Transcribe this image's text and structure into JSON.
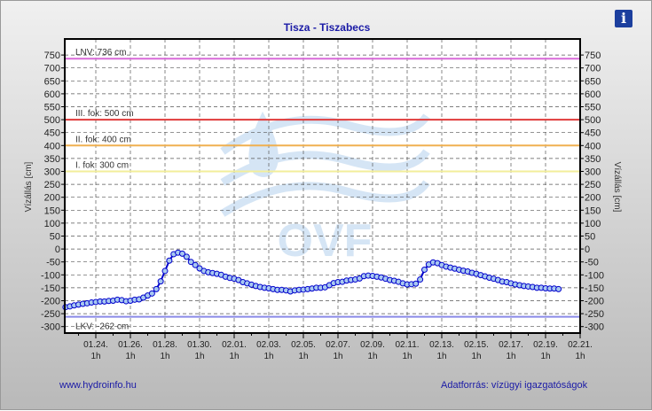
{
  "title": "Tisza - Tiszabecs",
  "info_icon": "info-icon",
  "footer": {
    "left": "www.hydroinfo.hu",
    "right": "Adatforrás: vízügyi igazgatóságok"
  },
  "watermark": "OVF",
  "chart_data": {
    "type": "line",
    "title": "Tisza - Tiszabecs",
    "ylabel": "Vízállás [cm]",
    "ylim": [
      -325,
      812
    ],
    "yticks": [
      -300,
      -250,
      -200,
      -150,
      -100,
      -50,
      0,
      50,
      100,
      150,
      200,
      250,
      300,
      350,
      400,
      450,
      500,
      550,
      600,
      650,
      700,
      750
    ],
    "xticks": [
      "01.24.",
      "01.26.",
      "01.28.",
      "01.30.",
      "02.01.",
      "02.03.",
      "02.05.",
      "02.07.",
      "02.09.",
      "02.11.",
      "02.13.",
      "02.15.",
      "02.17.",
      "02.19.",
      "02.21."
    ],
    "xtick_sub": "1h",
    "grid": true,
    "thresholds": [
      {
        "label": "LNV: 736 cm",
        "value": 736,
        "color": "#d86ad8"
      },
      {
        "label": "III. fok: 500 cm",
        "value": 500,
        "color": "#e03a3a"
      },
      {
        "label": "II. fok: 400 cm",
        "value": 400,
        "color": "#f0b050"
      },
      {
        "label": "I. fok: 300 cm",
        "value": 300,
        "color": "#f2ee9a"
      },
      {
        "label": "LKV: -262 cm",
        "value": -262,
        "color": "#8a8ae8"
      }
    ],
    "series": [
      {
        "color": "#0000cc",
        "marker_fill": "#a8c8f0",
        "points": [
          [
            "01.22 06h",
            -225
          ],
          [
            "01.22 12h",
            -222
          ],
          [
            "01.22 18h",
            -218
          ],
          [
            "01.23 00h",
            -215
          ],
          [
            "01.23 06h",
            -212
          ],
          [
            "01.23 12h",
            -210
          ],
          [
            "01.23 18h",
            -207
          ],
          [
            "01.24 00h",
            -205
          ],
          [
            "01.24 06h",
            -203
          ],
          [
            "01.24 12h",
            -203
          ],
          [
            "01.24 18h",
            -201
          ],
          [
            "01.25 00h",
            -200
          ],
          [
            "01.25 06h",
            -196
          ],
          [
            "01.25 12h",
            -198
          ],
          [
            "01.25 18h",
            -202
          ],
          [
            "01.26 00h",
            -200
          ],
          [
            "01.26 06h",
            -196
          ],
          [
            "01.26 12h",
            -195
          ],
          [
            "01.26 18h",
            -188
          ],
          [
            "01.27 00h",
            -180
          ],
          [
            "01.27 06h",
            -172
          ],
          [
            "01.27 12h",
            -155
          ],
          [
            "01.27 18h",
            -125
          ],
          [
            "01.28 00h",
            -85
          ],
          [
            "01.28 06h",
            -45
          ],
          [
            "01.28 12h",
            -20
          ],
          [
            "01.28 18h",
            -14
          ],
          [
            "01.29 00h",
            -18
          ],
          [
            "01.29 06h",
            -30
          ],
          [
            "01.29 12h",
            -50
          ],
          [
            "01.29 18h",
            -62
          ],
          [
            "01.30 00h",
            -75
          ],
          [
            "01.30 06h",
            -85
          ],
          [
            "01.30 12h",
            -90
          ],
          [
            "01.30 18h",
            -93
          ],
          [
            "01.31 00h",
            -96
          ],
          [
            "01.31 06h",
            -100
          ],
          [
            "01.31 12h",
            -107
          ],
          [
            "01.31 18h",
            -112
          ],
          [
            "02.01 00h",
            -115
          ],
          [
            "02.01 06h",
            -120
          ],
          [
            "02.01 12h",
            -128
          ],
          [
            "02.01 18h",
            -133
          ],
          [
            "02.02 00h",
            -138
          ],
          [
            "02.02 06h",
            -143
          ],
          [
            "02.02 12h",
            -147
          ],
          [
            "02.02 18h",
            -150
          ],
          [
            "02.03 00h",
            -152
          ],
          [
            "02.03 06h",
            -155
          ],
          [
            "02.03 12h",
            -158
          ],
          [
            "02.03 18h",
            -158
          ],
          [
            "02.04 00h",
            -160
          ],
          [
            "02.04 06h",
            -164
          ],
          [
            "02.04 12h",
            -160
          ],
          [
            "02.04 18h",
            -158
          ],
          [
            "02.05 00h",
            -157
          ],
          [
            "02.05 06h",
            -155
          ],
          [
            "02.05 12h",
            -153
          ],
          [
            "02.05 18h",
            -150
          ],
          [
            "02.06 00h",
            -150
          ],
          [
            "02.06 06h",
            -148
          ],
          [
            "02.06 12h",
            -140
          ],
          [
            "02.06 18h",
            -132
          ],
          [
            "02.07 00h",
            -128
          ],
          [
            "02.07 06h",
            -127
          ],
          [
            "02.07 12h",
            -122
          ],
          [
            "02.07 18h",
            -120
          ],
          [
            "02.08 00h",
            -118
          ],
          [
            "02.08 06h",
            -114
          ],
          [
            "02.08 12h",
            -105
          ],
          [
            "02.08 18h",
            -103
          ],
          [
            "02.09 00h",
            -104
          ],
          [
            "02.09 06h",
            -107
          ],
          [
            "02.09 12h",
            -110
          ],
          [
            "02.09 18h",
            -115
          ],
          [
            "02.10 00h",
            -120
          ],
          [
            "02.10 06h",
            -123
          ],
          [
            "02.10 12h",
            -127
          ],
          [
            "02.10 18h",
            -133
          ],
          [
            "02.11 00h",
            -137
          ],
          [
            "02.11 06h",
            -136
          ],
          [
            "02.11 12h",
            -134
          ],
          [
            "02.11 18h",
            -118
          ],
          [
            "02.12 00h",
            -80
          ],
          [
            "02.12 06h",
            -60
          ],
          [
            "02.12 12h",
            -52
          ],
          [
            "02.12 18h",
            -55
          ],
          [
            "02.13 00h",
            -62
          ],
          [
            "02.13 06h",
            -68
          ],
          [
            "02.13 12h",
            -72
          ],
          [
            "02.13 18h",
            -76
          ],
          [
            "02.14 00h",
            -80
          ],
          [
            "02.14 06h",
            -84
          ],
          [
            "02.14 12h",
            -87
          ],
          [
            "02.14 18h",
            -92
          ],
          [
            "02.15 00h",
            -96
          ],
          [
            "02.15 06h",
            -101
          ],
          [
            "02.15 12h",
            -106
          ],
          [
            "02.15 18h",
            -111
          ],
          [
            "02.16 00h",
            -115
          ],
          [
            "02.16 06h",
            -120
          ],
          [
            "02.16 12h",
            -126
          ],
          [
            "02.16 18h",
            -128
          ],
          [
            "02.17 00h",
            -133
          ],
          [
            "02.17 06h",
            -137
          ],
          [
            "02.17 12h",
            -140
          ],
          [
            "02.17 18h",
            -143
          ],
          [
            "02.18 00h",
            -145
          ],
          [
            "02.18 06h",
            -147
          ],
          [
            "02.18 12h",
            -150
          ],
          [
            "02.18 18h",
            -150
          ],
          [
            "02.19 00h",
            -152
          ],
          [
            "02.19 06h",
            -153
          ],
          [
            "02.19 12h",
            -153
          ],
          [
            "02.19 18h",
            -155
          ]
        ]
      }
    ]
  }
}
